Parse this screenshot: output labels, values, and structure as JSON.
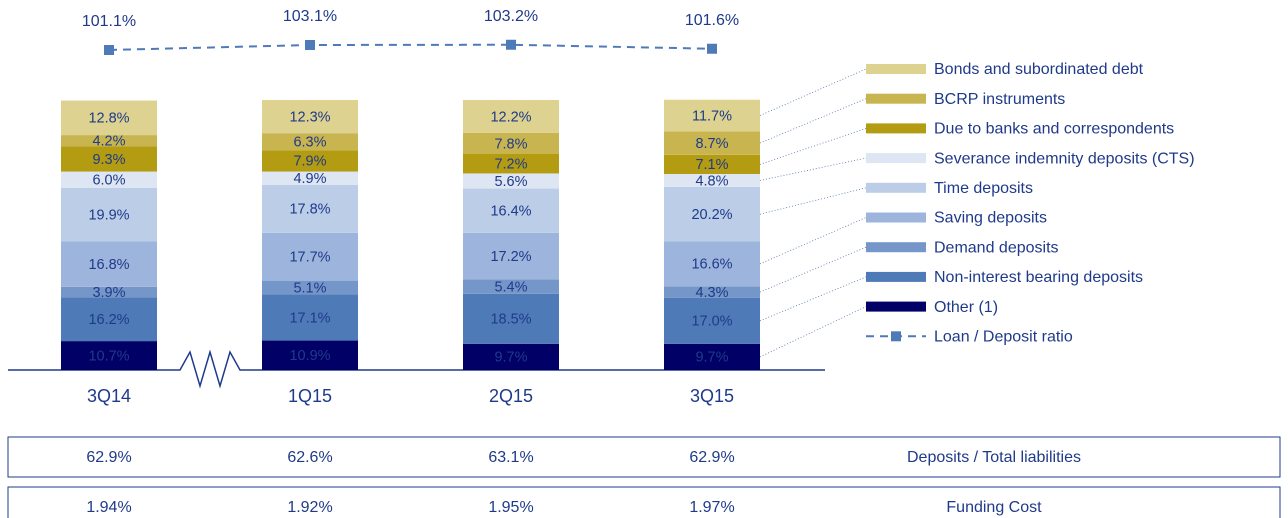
{
  "chart_data": {
    "type": "bar",
    "stacked": true,
    "categories": [
      "3Q14",
      "1Q15",
      "2Q15",
      "3Q15"
    ],
    "series": [
      {
        "name": "Bonds and subordinated debt",
        "color": "#ddd28f",
        "values": [
          12.8,
          12.3,
          12.2,
          11.7
        ],
        "value_labels": [
          "12.8%",
          "12.3%",
          "12.2%",
          "11.7%"
        ]
      },
      {
        "name": "BCRP instruments",
        "color": "#c9b54f",
        "values": [
          4.2,
          6.3,
          7.8,
          8.7
        ],
        "value_labels": [
          "4.2%",
          "6.3%",
          "7.8%",
          "8.7%"
        ]
      },
      {
        "name": "Due to banks and correspondents",
        "color": "#b39b12",
        "values": [
          9.3,
          7.9,
          7.2,
          7.1
        ],
        "value_labels": [
          "9.3%",
          "7.9%",
          "7.2%",
          "7.1%"
        ]
      },
      {
        "name": "Severance indemnity deposits (CTS)",
        "color": "#dde6f2",
        "values": [
          6.0,
          4.9,
          5.6,
          4.8
        ],
        "value_labels": [
          "6.0%",
          "4.9%",
          "5.6%",
          "4.8%"
        ]
      },
      {
        "name": "Time deposits",
        "color": "#bccde8",
        "values": [
          19.9,
          17.8,
          16.4,
          20.2
        ],
        "value_labels": [
          "19.9%",
          "17.8%",
          "16.4%",
          "20.2%"
        ]
      },
      {
        "name": "Saving deposits",
        "color": "#9db5dc",
        "values": [
          16.8,
          17.7,
          17.2,
          16.6
        ],
        "value_labels": [
          "16.8%",
          "17.7%",
          "17.2%",
          "16.6%"
        ]
      },
      {
        "name": "Demand deposits",
        "color": "#7596c8",
        "values": [
          3.9,
          5.1,
          5.4,
          4.3
        ],
        "value_labels": [
          "3.9%",
          "5.1%",
          "5.4%",
          "4.3%"
        ]
      },
      {
        "name": "Non-interest bearing deposits",
        "color": "#4f7ab8",
        "values": [
          16.2,
          17.1,
          18.5,
          17.0
        ],
        "value_labels": [
          "16.2%",
          "17.1%",
          "18.5%",
          "17.0%"
        ]
      },
      {
        "name": "Other (1)",
        "color": "#000066",
        "values": [
          10.7,
          10.9,
          9.7,
          9.7
        ],
        "value_labels": [
          "10.7%",
          "10.9%",
          "9.7%",
          "9.7%"
        ]
      },
      {
        "name": "Loan / Deposit ratio",
        "type": "line",
        "color": "#4f7ab8",
        "values": [
          101.1,
          103.1,
          103.2,
          101.6
        ],
        "value_labels": [
          "101.1%",
          "103.1%",
          "103.2%",
          "101.6%"
        ]
      }
    ]
  },
  "table": {
    "rows": [
      {
        "label": "Deposits / Total liabilities",
        "cells": [
          "62.9%",
          "62.6%",
          "63.1%",
          "62.9%"
        ]
      },
      {
        "label": "Funding Cost",
        "cells": [
          "1.94%",
          "1.92%",
          "1.95%",
          "1.97%"
        ]
      }
    ]
  }
}
